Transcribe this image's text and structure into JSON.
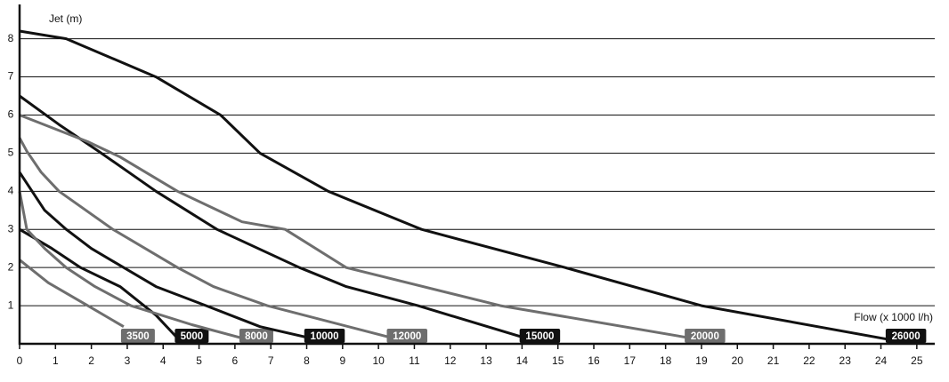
{
  "chart_data": {
    "type": "line",
    "y_label": "Jet (m)",
    "x_label": "Flow (x 1000 l/h)",
    "xlim": [
      0,
      25.5
    ],
    "ylim": [
      0,
      8.9
    ],
    "xticks": [
      0,
      1,
      2,
      3,
      4,
      5,
      6,
      7,
      8,
      9,
      10,
      11,
      12,
      13,
      14,
      15,
      16,
      17,
      18,
      19,
      20,
      21,
      22,
      23,
      24,
      25
    ],
    "yticks": [
      1,
      2,
      3,
      4,
      5,
      6,
      7,
      8
    ],
    "grid": true,
    "series": [
      {
        "name": "3500",
        "color": "#6e6e6e",
        "x": [
          0,
          0.8,
          1.9,
          2.9
        ],
        "values": [
          2.2,
          1.6,
          1.0,
          0.45
        ]
      },
      {
        "name": "5000",
        "color": "#111111",
        "x": [
          0,
          0.9,
          1.7,
          2.8,
          3.8,
          4.4
        ],
        "values": [
          3.0,
          2.5,
          2.0,
          1.5,
          0.75,
          0.15
        ]
      },
      {
        "name": "8000",
        "color": "#6e6e6e",
        "x": [
          0,
          0.2,
          0.7,
          1.3,
          2.1,
          3.1,
          4.8,
          6.2
        ],
        "values": [
          4.0,
          3.0,
          2.5,
          2.0,
          1.5,
          1.0,
          0.5,
          0.15
        ]
      },
      {
        "name": "10000",
        "color": "#111111",
        "x": [
          0,
          0.7,
          1.3,
          2.0,
          3.8,
          5.2,
          6.7,
          8.1
        ],
        "values": [
          4.5,
          3.5,
          3.0,
          2.5,
          1.5,
          1.0,
          0.45,
          0.15
        ]
      },
      {
        "name": "12000",
        "color": "#6e6e6e",
        "x": [
          0,
          0.2,
          0.6,
          1.1,
          2.6,
          4.4,
          5.4,
          6.9,
          10.4
        ],
        "values": [
          5.4,
          5.05,
          4.5,
          4.0,
          3.0,
          2.0,
          1.5,
          1.0,
          0.15
        ]
      },
      {
        "name": "15000",
        "color": "#111111",
        "x": [
          0,
          1.1,
          2.2,
          3.8,
          5.5,
          7.8,
          9.1,
          11.1,
          14.1
        ],
        "values": [
          6.5,
          5.75,
          5.05,
          4.0,
          3.0,
          2.0,
          1.5,
          1.0,
          0.15
        ]
      },
      {
        "name": "20000",
        "color": "#6e6e6e",
        "x": [
          0,
          1.9,
          2.8,
          4.4,
          6.2,
          7.4,
          9.1,
          13.4,
          18.7
        ],
        "values": [
          6.0,
          5.3,
          4.9,
          4.0,
          3.2,
          3.0,
          2.0,
          1.0,
          0.15
        ]
      },
      {
        "name": "26000",
        "color": "#111111",
        "x": [
          0,
          1.3,
          3.8,
          5.6,
          6.7,
          8.6,
          11.2,
          15.2,
          19,
          24.3
        ],
        "values": [
          8.2,
          8.0,
          7.0,
          6.0,
          5.0,
          4.0,
          3.0,
          2.0,
          1.0,
          0.1
        ]
      }
    ]
  }
}
